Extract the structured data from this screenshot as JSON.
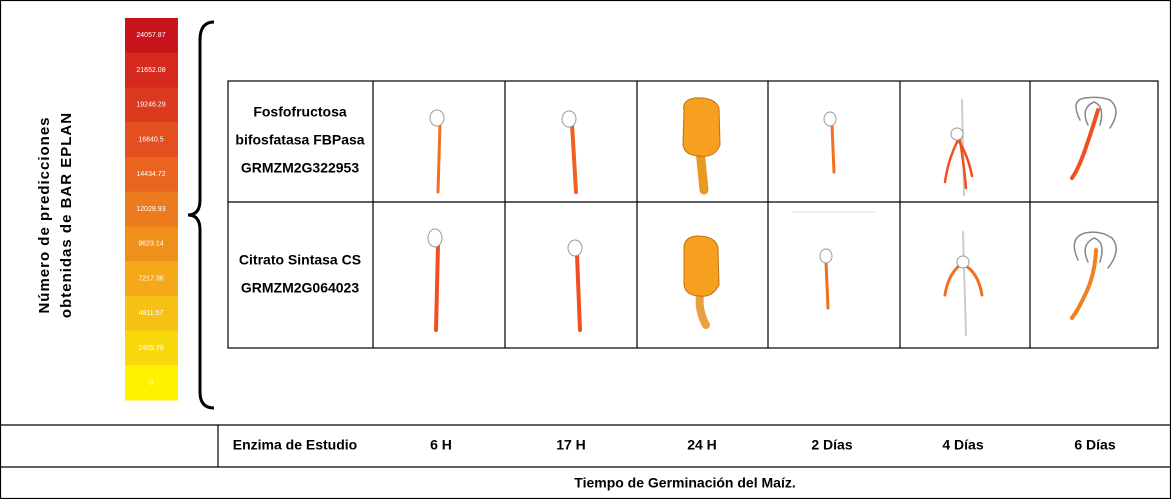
{
  "y_axis_title": [
    "Número de predicciones",
    "obtenidas de BAR EPLAN"
  ],
  "scale_labels": [
    24057.87,
    21652.08,
    19246.29,
    16840.5,
    14434.72,
    12028.93,
    9623.14,
    7217.36,
    4811.57,
    2405.78,
    0
  ],
  "table": {
    "rows": [
      [
        "Fosfofructosa",
        "bifosfatasa FBPasa",
        "GRMZM2G322953"
      ],
      [
        "Citrato Sintasa CS",
        "GRMZM2G064023"
      ]
    ],
    "columns": [
      "Enzima de Estudio",
      "6 H",
      "17 H",
      "24 H",
      "2 Días",
      "4 Días",
      "6 Días"
    ]
  },
  "footer": "Tiempo de Germinación del Maíz."
}
